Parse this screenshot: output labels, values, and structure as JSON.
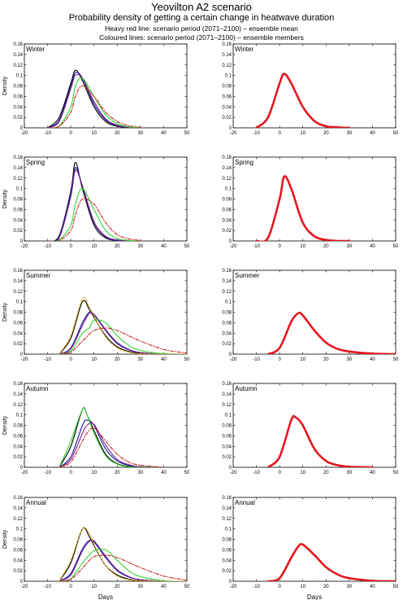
{
  "header": {
    "title": "Yeovilton A2 scenario",
    "subtitle": "Probability density of getting a certain change in heatwave duration",
    "note_mean": "Heavy red line: scenario period (2071–2100) – ensemble mean",
    "note_members": "Coloured lines: scenario period (2071–2100) – ensemble members"
  },
  "axes": {
    "xlabel": "Days",
    "ylabel": "Density",
    "xlim": [
      -20,
      50
    ],
    "ylim": [
      0,
      0.16
    ],
    "xticks": [
      -20,
      -10,
      0,
      10,
      20,
      30,
      40,
      50
    ],
    "yticks": [
      0,
      0.02,
      0.04,
      0.06,
      0.08,
      0.1,
      0.12,
      0.14,
      0.16
    ],
    "xtick_labels": [
      "-20",
      "-10",
      "0",
      "10",
      "20",
      "30",
      "40",
      "50"
    ],
    "ytick_labels": [
      "0",
      "0.02",
      "0.04",
      "0.06",
      "0.08",
      "0.1",
      "0.12",
      "0.14",
      "0.16"
    ]
  },
  "colors": {
    "mean_line": "#e8141e",
    "members": [
      "#000000",
      "#1a1a9c",
      "#7a1f8c",
      "#33d633",
      "#c81e1e",
      "#d9a31c"
    ]
  },
  "chart_data": [
    {
      "type": "line",
      "season": "Winter",
      "panel": "ensemble members",
      "x": [
        -10,
        -5,
        0,
        2,
        5,
        10,
        15,
        20,
        25,
        30
      ],
      "series": [
        {
          "color": "#000000",
          "values": [
            0.0,
            0.02,
            0.085,
            0.11,
            0.09,
            0.04,
            0.012,
            0.003,
            0.001,
            0.0
          ]
        },
        {
          "color": "#1a1a9c",
          "values": [
            0.0,
            0.015,
            0.08,
            0.105,
            0.095,
            0.045,
            0.015,
            0.004,
            0.001,
            0.0
          ]
        },
        {
          "color": "#7a1f8c",
          "values": [
            0.0,
            0.012,
            0.075,
            0.1,
            0.095,
            0.05,
            0.017,
            0.005,
            0.001,
            0.0
          ]
        },
        {
          "color": "#33d633",
          "values": [
            0.0,
            0.004,
            0.04,
            0.08,
            0.095,
            0.06,
            0.025,
            0.008,
            0.002,
            0.0
          ]
        },
        {
          "color": "#c81e1e",
          "values": [
            0.0,
            0.003,
            0.03,
            0.06,
            0.08,
            0.06,
            0.03,
            0.012,
            0.004,
            0.001
          ]
        }
      ]
    },
    {
      "type": "line",
      "season": "Winter",
      "panel": "ensemble mean",
      "x": [
        -10,
        -5,
        0,
        2,
        5,
        10,
        15,
        20,
        25,
        30
      ],
      "series": [
        {
          "color": "#e8141e",
          "values": [
            0.0,
            0.02,
            0.085,
            0.103,
            0.085,
            0.04,
            0.013,
            0.003,
            0.001,
            0.0
          ]
        }
      ]
    },
    {
      "type": "line",
      "season": "Spring",
      "panel": "ensemble members",
      "x": [
        -10,
        -5,
        0,
        2,
        5,
        10,
        15,
        20,
        25,
        30
      ],
      "series": [
        {
          "color": "#000000",
          "values": [
            0.0,
            0.01,
            0.095,
            0.15,
            0.1,
            0.03,
            0.006,
            0.001,
            0.0,
            0.0
          ]
        },
        {
          "color": "#1a1a9c",
          "values": [
            0.0,
            0.008,
            0.09,
            0.14,
            0.105,
            0.035,
            0.008,
            0.001,
            0.0,
            0.0
          ]
        },
        {
          "color": "#7a1f8c",
          "values": [
            0.0,
            0.006,
            0.085,
            0.135,
            0.105,
            0.037,
            0.009,
            0.002,
            0.0,
            0.0
          ]
        },
        {
          "color": "#33d633",
          "values": [
            0.0,
            0.002,
            0.03,
            0.07,
            0.1,
            0.06,
            0.02,
            0.005,
            0.001,
            0.0
          ]
        },
        {
          "color": "#c81e1e",
          "values": [
            0.0,
            0.001,
            0.02,
            0.05,
            0.08,
            0.07,
            0.035,
            0.012,
            0.004,
            0.001
          ]
        }
      ]
    },
    {
      "type": "line",
      "season": "Spring",
      "panel": "ensemble mean",
      "x": [
        -10,
        -5,
        0,
        2,
        5,
        10,
        15,
        20,
        25,
        30
      ],
      "series": [
        {
          "color": "#e8141e",
          "values": [
            0.0,
            0.006,
            0.08,
            0.123,
            0.1,
            0.035,
            0.009,
            0.002,
            0.0,
            0.0
          ]
        }
      ]
    },
    {
      "type": "line",
      "season": "Summer",
      "panel": "ensemble members",
      "x": [
        -5,
        0,
        5,
        8,
        10,
        15,
        20,
        25,
        30,
        40,
        50
      ],
      "series": [
        {
          "color": "#000000",
          "values": [
            0.0,
            0.03,
            0.1,
            0.085,
            0.07,
            0.035,
            0.014,
            0.005,
            0.002,
            0.0,
            0.0
          ]
        },
        {
          "color": "#1a1a9c",
          "values": [
            0.0,
            0.012,
            0.06,
            0.08,
            0.075,
            0.045,
            0.02,
            0.008,
            0.003,
            0.0,
            0.0
          ]
        },
        {
          "color": "#7a1f8c",
          "values": [
            0.0,
            0.01,
            0.055,
            0.078,
            0.076,
            0.047,
            0.022,
            0.009,
            0.003,
            0.0,
            0.0
          ]
        },
        {
          "color": "#33d633",
          "values": [
            0.0,
            0.006,
            0.04,
            0.05,
            0.065,
            0.06,
            0.035,
            0.017,
            0.007,
            0.001,
            0.0
          ]
        },
        {
          "color": "#c81e1e",
          "values": [
            0.0,
            0.004,
            0.025,
            0.038,
            0.045,
            0.05,
            0.045,
            0.035,
            0.025,
            0.009,
            0.002
          ]
        },
        {
          "color": "#d9a31c",
          "values": [
            0.0,
            0.035,
            0.105,
            0.09,
            0.072,
            0.033,
            0.012,
            0.004,
            0.001,
            0.0,
            0.0
          ]
        }
      ]
    },
    {
      "type": "line",
      "season": "Summer",
      "panel": "ensemble mean",
      "x": [
        -5,
        0,
        5,
        8,
        10,
        15,
        20,
        25,
        30,
        40,
        50
      ],
      "series": [
        {
          "color": "#e8141e",
          "values": [
            0.0,
            0.012,
            0.062,
            0.078,
            0.074,
            0.045,
            0.022,
            0.01,
            0.005,
            0.001,
            0.0
          ]
        }
      ]
    },
    {
      "type": "line",
      "season": "Autumn",
      "panel": "ensemble members",
      "x": [
        -5,
        0,
        5,
        7,
        10,
        15,
        20,
        25,
        30,
        40
      ],
      "series": [
        {
          "color": "#000000",
          "values": [
            0.0,
            0.04,
            0.11,
            0.1,
            0.07,
            0.025,
            0.007,
            0.002,
            0.0,
            0.0
          ]
        },
        {
          "color": "#1a1a9c",
          "values": [
            0.0,
            0.02,
            0.08,
            0.09,
            0.08,
            0.035,
            0.012,
            0.004,
            0.001,
            0.0
          ]
        },
        {
          "color": "#7a1f8c",
          "values": [
            0.0,
            0.015,
            0.065,
            0.08,
            0.082,
            0.042,
            0.015,
            0.005,
            0.001,
            0.0
          ]
        },
        {
          "color": "#33d633",
          "values": [
            0.0,
            0.05,
            0.11,
            0.1,
            0.065,
            0.022,
            0.006,
            0.001,
            0.0,
            0.0
          ]
        },
        {
          "color": "#c81e1e",
          "values": [
            0.0,
            0.01,
            0.05,
            0.065,
            0.075,
            0.05,
            0.025,
            0.01,
            0.004,
            0.0
          ]
        }
      ]
    },
    {
      "type": "line",
      "season": "Autumn",
      "panel": "ensemble mean",
      "x": [
        -5,
        0,
        5,
        7,
        10,
        15,
        20,
        25,
        30,
        40
      ],
      "series": [
        {
          "color": "#e8141e",
          "values": [
            0.0,
            0.02,
            0.09,
            0.095,
            0.08,
            0.035,
            0.012,
            0.004,
            0.001,
            0.0
          ]
        }
      ]
    },
    {
      "type": "line",
      "season": "Annual",
      "panel": "ensemble members",
      "x": [
        -5,
        0,
        5,
        8,
        10,
        15,
        20,
        25,
        30,
        40,
        50
      ],
      "series": [
        {
          "color": "#000000",
          "values": [
            0.0,
            0.035,
            0.1,
            0.085,
            0.068,
            0.03,
            0.012,
            0.004,
            0.001,
            0.0,
            0.0
          ]
        },
        {
          "color": "#1a1a9c",
          "values": [
            0.0,
            0.015,
            0.062,
            0.078,
            0.075,
            0.045,
            0.02,
            0.008,
            0.003,
            0.0,
            0.0
          ]
        },
        {
          "color": "#7a1f8c",
          "values": [
            0.0,
            0.012,
            0.058,
            0.076,
            0.077,
            0.048,
            0.022,
            0.009,
            0.003,
            0.0,
            0.0
          ]
        },
        {
          "color": "#33d633",
          "values": [
            0.0,
            0.005,
            0.035,
            0.05,
            0.058,
            0.06,
            0.04,
            0.02,
            0.009,
            0.001,
            0.0
          ]
        },
        {
          "color": "#c81e1e",
          "values": [
            0.0,
            0.004,
            0.025,
            0.04,
            0.047,
            0.05,
            0.045,
            0.036,
            0.026,
            0.01,
            0.002
          ]
        },
        {
          "color": "#d9a31c",
          "values": [
            0.0,
            0.04,
            0.1,
            0.09,
            0.07,
            0.03,
            0.01,
            0.003,
            0.001,
            0.0,
            0.0
          ]
        }
      ]
    },
    {
      "type": "line",
      "season": "Annual",
      "panel": "ensemble mean",
      "x": [
        -5,
        0,
        5,
        8,
        10,
        15,
        20,
        25,
        30,
        40,
        50
      ],
      "series": [
        {
          "color": "#e8141e",
          "values": [
            0.0,
            0.006,
            0.045,
            0.066,
            0.07,
            0.05,
            0.027,
            0.013,
            0.006,
            0.001,
            0.0
          ]
        }
      ]
    }
  ]
}
